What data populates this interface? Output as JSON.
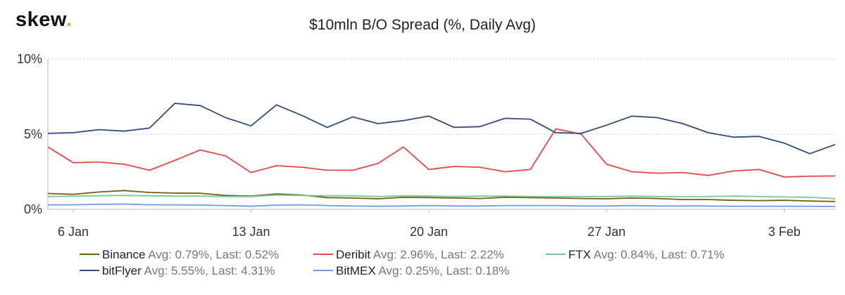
{
  "brand": {
    "name": "skew",
    "dot": "."
  },
  "chart_data": {
    "type": "line",
    "title": "$10mln B/O Spread (%, Daily Avg)",
    "xlabel": "",
    "ylabel": "",
    "ylim": [
      0,
      10
    ],
    "y_ticks": [
      0,
      5,
      10
    ],
    "y_tick_labels": [
      "0%",
      "5%",
      "10%"
    ],
    "x_tick_labels": [
      "6 Jan",
      "13 Jan",
      "20 Jan",
      "27 Jan",
      "3 Feb"
    ],
    "x_tick_positions": [
      1,
      8,
      15,
      22,
      29
    ],
    "x_range": [
      0,
      31
    ],
    "grid": "horizontal dashed",
    "legend_placement": "bottom",
    "series": [
      {
        "name": "Binance",
        "stats": "Avg: 0.79%, Last: 0.52%",
        "color": "#7b5a13",
        "values": [
          1.05,
          1.0,
          1.15,
          1.25,
          1.12,
          1.08,
          1.07,
          0.92,
          0.88,
          1.02,
          0.95,
          0.78,
          0.75,
          0.7,
          0.8,
          0.78,
          0.75,
          0.72,
          0.8,
          0.78,
          0.75,
          0.72,
          0.7,
          0.75,
          0.72,
          0.65,
          0.65,
          0.6,
          0.58,
          0.6,
          0.55,
          0.52
        ]
      },
      {
        "name": "Deribit",
        "stats": "Avg: 2.96%, Last: 2.22%",
        "color": "#e8474a",
        "values": [
          4.15,
          3.1,
          3.15,
          3.0,
          2.6,
          3.25,
          3.95,
          3.55,
          2.45,
          2.9,
          2.8,
          2.6,
          2.6,
          3.05,
          4.15,
          2.65,
          2.85,
          2.8,
          2.5,
          2.65,
          5.35,
          5.0,
          3.0,
          2.5,
          2.4,
          2.45,
          2.25,
          2.55,
          2.65,
          2.15,
          2.2,
          2.22
        ]
      },
      {
        "name": "FTX",
        "stats": "Avg: 0.84%, Last: 0.71%",
        "color": "#77c89a",
        "values": [
          0.85,
          0.88,
          0.9,
          0.92,
          0.9,
          0.88,
          0.88,
          0.85,
          0.85,
          0.95,
          0.92,
          0.9,
          0.9,
          0.85,
          0.9,
          0.88,
          0.85,
          0.88,
          0.88,
          0.85,
          0.85,
          0.85,
          0.85,
          0.88,
          0.85,
          0.85,
          0.85,
          0.88,
          0.85,
          0.82,
          0.8,
          0.71
        ]
      },
      {
        "name": "bitFlyer",
        "stats": "Avg: 5.55%, Last: 4.31%",
        "color": "#2f4b7c",
        "values": [
          5.05,
          5.1,
          5.3,
          5.2,
          5.4,
          7.05,
          6.9,
          6.1,
          5.55,
          6.95,
          6.25,
          5.45,
          6.15,
          5.7,
          5.9,
          6.2,
          5.45,
          5.5,
          6.05,
          6.0,
          5.1,
          5.05,
          5.6,
          6.2,
          6.1,
          5.7,
          5.1,
          4.8,
          4.85,
          4.4,
          3.7,
          4.31
        ]
      },
      {
        "name": "BitMEX",
        "stats": "Avg: 0.25%, Last: 0.18%",
        "color": "#6c9be8",
        "values": [
          0.3,
          0.3,
          0.33,
          0.35,
          0.3,
          0.3,
          0.28,
          0.25,
          0.2,
          0.28,
          0.3,
          0.25,
          0.22,
          0.2,
          0.22,
          0.25,
          0.22,
          0.22,
          0.25,
          0.25,
          0.25,
          0.22,
          0.22,
          0.25,
          0.22,
          0.22,
          0.22,
          0.2,
          0.2,
          0.2,
          0.2,
          0.18
        ]
      }
    ]
  }
}
